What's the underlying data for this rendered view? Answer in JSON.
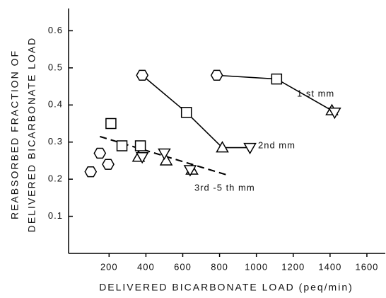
{
  "chart_data": {
    "type": "scatter",
    "xlabel": "DELIVERED BICARBONATE LOAD  (peq/min)",
    "ylabel": [
      "REABSORBED FRACTION OF",
      "DELIVERED BICARBONATE LOAD"
    ],
    "xlim": [
      -20,
      1700
    ],
    "ylim": [
      0,
      0.66
    ],
    "xticks": [
      200,
      400,
      600,
      800,
      1000,
      1200,
      1400,
      1600
    ],
    "yticks": [
      0.1,
      0.2,
      0.3,
      0.4,
      0.5,
      0.6
    ],
    "color": "#000000",
    "series": [
      {
        "name": "1 st mm",
        "connected": true,
        "markers": [
          "hexagon",
          "square",
          "triangle-up",
          "triangle-down"
        ],
        "x": [
          785,
          1110,
          1410,
          1425
        ],
        "values": [
          0.48,
          0.47,
          0.385,
          0.38
        ]
      },
      {
        "name": "2nd mm",
        "connected": true,
        "markers": [
          "hexagon",
          "square",
          "triangle-up",
          "triangle-down"
        ],
        "x": [
          380,
          620,
          815,
          965
        ],
        "values": [
          0.48,
          0.38,
          0.285,
          0.285
        ]
      },
      {
        "name": "3rd -5 th mm",
        "connected": false,
        "markers": [
          "hexagon",
          "hexagon",
          "hexagon",
          "square",
          "square",
          "square",
          "triangle-up",
          "triangle-up",
          "triangle-up",
          "triangle-down",
          "triangle-down",
          "triangle-down"
        ],
        "x": [
          100,
          150,
          195,
          210,
          270,
          370,
          360,
          510,
          650,
          380,
          500,
          640
        ],
        "values": [
          0.22,
          0.27,
          0.24,
          0.35,
          0.29,
          0.29,
          0.26,
          0.25,
          0.225,
          0.26,
          0.27,
          0.225
        ],
        "trend_x": [
          150,
          850
        ],
        "trend_values": [
          0.315,
          0.21
        ]
      }
    ]
  }
}
